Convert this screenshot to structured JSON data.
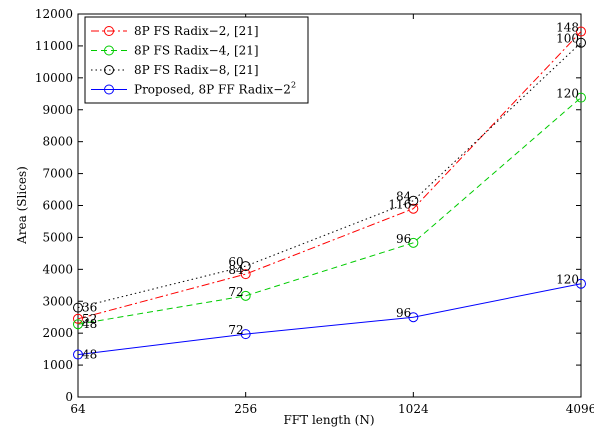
{
  "chart_data": {
    "type": "line",
    "x": [
      64,
      256,
      1024,
      4096
    ],
    "x_scale": "log2",
    "xlabel": "FFT length (N)",
    "ylabel": "Area (Slices)",
    "ylim": [
      0,
      12000
    ],
    "yticks": [
      0,
      1000,
      2000,
      3000,
      4000,
      5000,
      6000,
      7000,
      8000,
      9000,
      10000,
      11000,
      12000
    ],
    "xticks": [
      "64",
      "256",
      "1024",
      "4096"
    ],
    "grid": false,
    "legend_position": "top-left",
    "series": [
      {
        "name": "8P FS Radix−2, [21]",
        "values": [
          2450,
          3850,
          5900,
          11450
        ],
        "point_labels": [
          "52",
          "84",
          "116",
          "148"
        ],
        "color": "#ff0000",
        "dash": "dash-dot"
      },
      {
        "name": "8P FS Radix−4, [21]",
        "values": [
          2280,
          3170,
          4830,
          9380
        ],
        "point_labels": [
          "48",
          "72",
          "96",
          "120"
        ],
        "color": "#00cc00",
        "dash": "dashed"
      },
      {
        "name": "8P FS Radix−8, [21]",
        "values": [
          2800,
          4100,
          6150,
          11100
        ],
        "point_labels": [
          "36",
          "60",
          "84",
          "100"
        ],
        "color": "#000000",
        "dash": "dotted"
      },
      {
        "name": "Proposed, 8P FF Radix−2",
        "name_superscript": "2",
        "values": [
          1330,
          1970,
          2500,
          3550
        ],
        "point_labels": [
          "48",
          "72",
          "96",
          "120"
        ],
        "color": "#0000ff",
        "dash": "solid"
      }
    ]
  }
}
